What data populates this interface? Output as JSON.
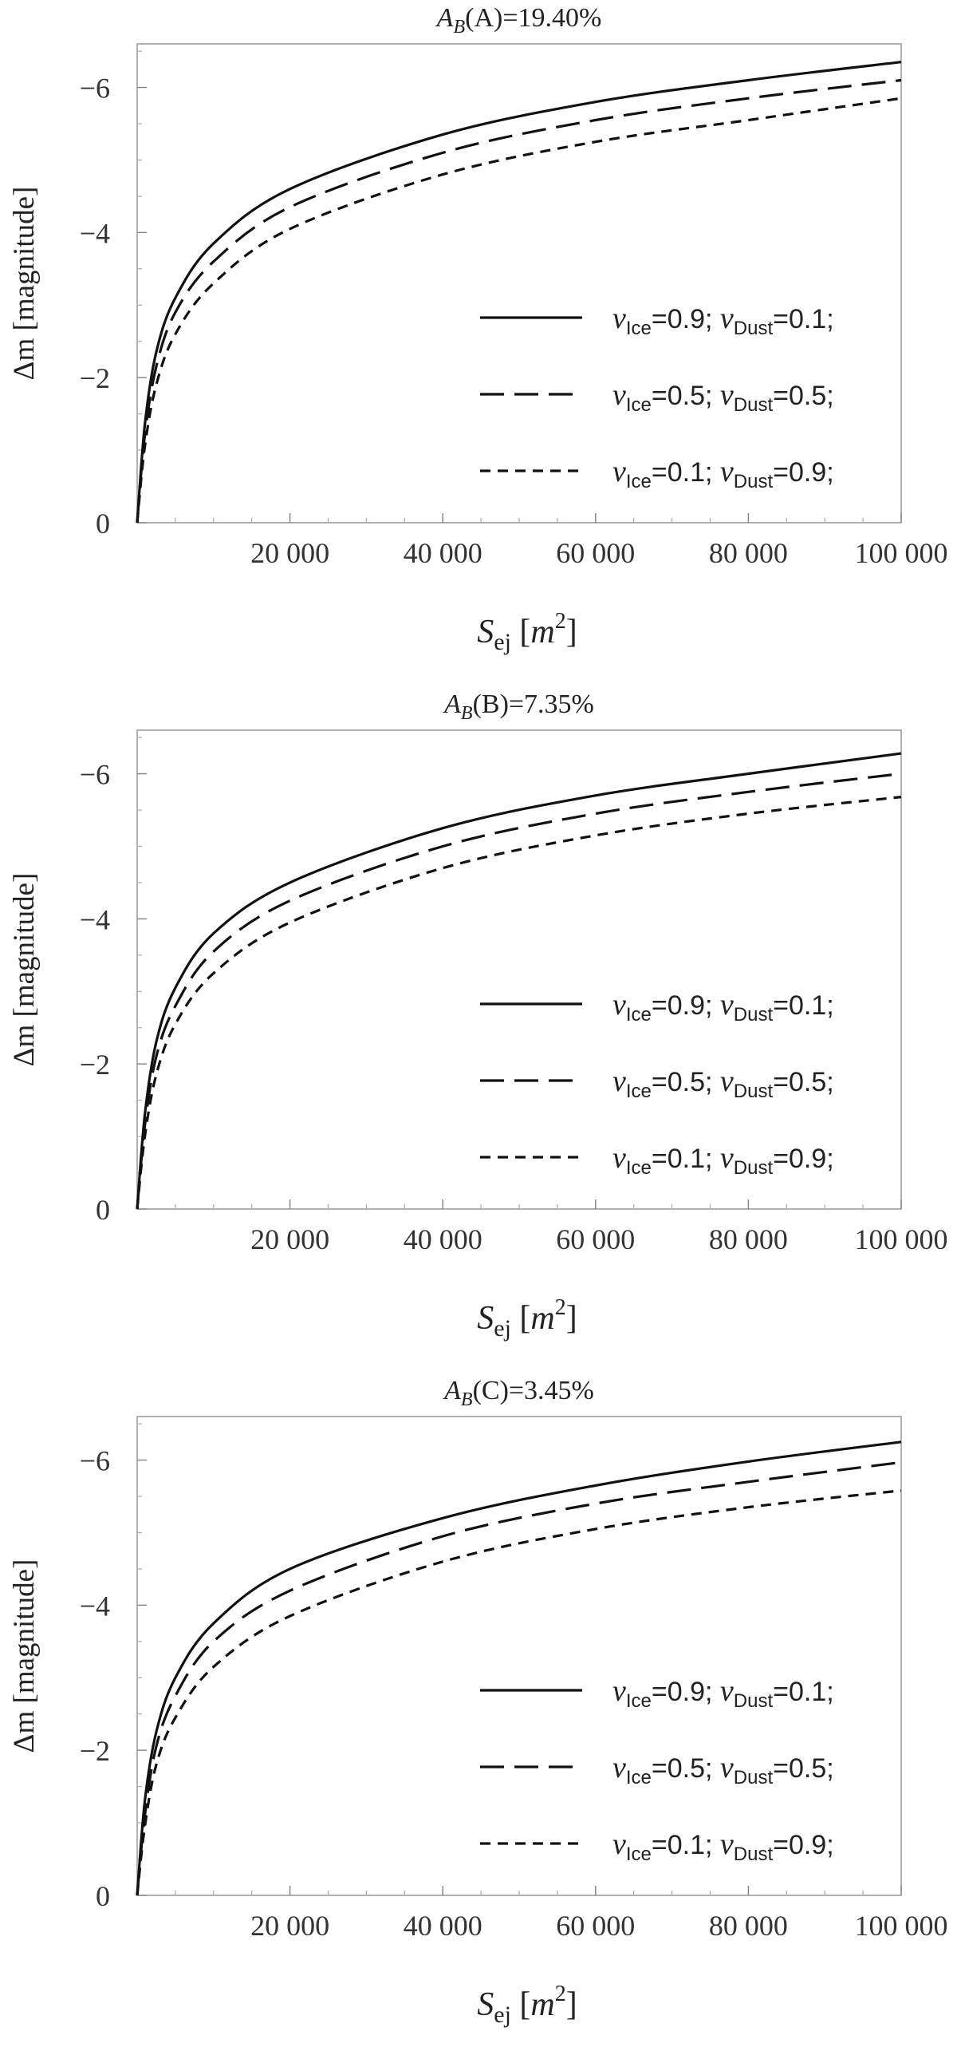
{
  "chart_data": [
    {
      "type": "line",
      "title": {
        "sym": "A",
        "sub": "B",
        "rest": "(A)=19.40%"
      },
      "xlabel": {
        "sym": "S",
        "sub": "ej",
        "open": "[",
        "unit": "m",
        "sup": "2",
        "close": "]"
      },
      "ylabel": "Δm [magnitude]",
      "xlim": [
        0,
        100000
      ],
      "ylim": [
        0,
        -6.6
      ],
      "y_reversed": true,
      "xticks": [
        20000,
        40000,
        60000,
        80000,
        100000
      ],
      "xtick_labels": [
        "20 000",
        "40 000",
        "60 000",
        "80 000",
        "100 000"
      ],
      "yticks": [
        0,
        -2,
        -4,
        -6
      ],
      "ytick_labels": [
        "0",
        "−2",
        "−4",
        "−6"
      ],
      "legend_position": "right",
      "series": [
        {
          "name": {
            "v1": "v",
            "s1": "Ice",
            "e1": "=0.9; ",
            "v2": "v",
            "s2": "Dust",
            "e2": "=0.1;"
          },
          "style": "solid",
          "x": [
            0,
            1000,
            2500,
            5000,
            10000,
            20000,
            40000,
            60000,
            80000,
            100000
          ],
          "y": [
            0,
            -1.35,
            -2.35,
            -3.1,
            -3.85,
            -4.6,
            -5.35,
            -5.8,
            -6.1,
            -6.35
          ]
        },
        {
          "name": {
            "v1": "v",
            "s1": "Ice",
            "e1": "=0.5; ",
            "v2": "v",
            "s2": "Dust",
            "e2": "=0.5;"
          },
          "style": "long-dash",
          "x": [
            0,
            1000,
            2500,
            5000,
            10000,
            20000,
            40000,
            60000,
            80000,
            100000
          ],
          "y": [
            0,
            -1.2,
            -2.15,
            -2.9,
            -3.6,
            -4.35,
            -5.1,
            -5.55,
            -5.85,
            -6.1
          ]
        },
        {
          "name": {
            "v1": "v",
            "s1": "Ice",
            "e1": "=0.1; ",
            "v2": "v",
            "s2": "Dust",
            "e2": "=0.9;"
          },
          "style": "short-dash",
          "x": [
            0,
            1000,
            2500,
            5000,
            10000,
            20000,
            40000,
            60000,
            80000,
            100000
          ],
          "y": [
            0,
            -1.05,
            -1.9,
            -2.6,
            -3.3,
            -4.05,
            -4.8,
            -5.25,
            -5.55,
            -5.85
          ]
        }
      ]
    },
    {
      "type": "line",
      "title": {
        "sym": "A",
        "sub": "B",
        "rest": "(B)=7.35%"
      },
      "xlabel": {
        "sym": "S",
        "sub": "ej",
        "open": "[",
        "unit": "m",
        "sup": "2",
        "close": "]"
      },
      "ylabel": "Δm [magnitude]",
      "xlim": [
        0,
        100000
      ],
      "ylim": [
        0,
        -6.6
      ],
      "y_reversed": true,
      "xticks": [
        20000,
        40000,
        60000,
        80000,
        100000
      ],
      "xtick_labels": [
        "20 000",
        "40 000",
        "60 000",
        "80 000",
        "100 000"
      ],
      "yticks": [
        0,
        -2,
        -4,
        -6
      ],
      "ytick_labels": [
        "0",
        "−2",
        "−4",
        "−6"
      ],
      "legend_position": "right",
      "series": [
        {
          "name": {
            "v1": "v",
            "s1": "Ice",
            "e1": "=0.9; ",
            "v2": "v",
            "s2": "Dust",
            "e2": "=0.1;"
          },
          "style": "solid",
          "x": [
            0,
            1000,
            2500,
            5000,
            10000,
            20000,
            40000,
            60000,
            80000,
            100000
          ],
          "y": [
            0,
            -1.3,
            -2.3,
            -3.05,
            -3.8,
            -4.5,
            -5.25,
            -5.7,
            -6.0,
            -6.28
          ]
        },
        {
          "name": {
            "v1": "v",
            "s1": "Ice",
            "e1": "=0.5; ",
            "v2": "v",
            "s2": "Dust",
            "e2": "=0.5;"
          },
          "style": "long-dash",
          "x": [
            0,
            1000,
            2500,
            5000,
            10000,
            20000,
            40000,
            60000,
            80000,
            100000
          ],
          "y": [
            0,
            -1.15,
            -2.1,
            -2.8,
            -3.55,
            -4.25,
            -5.0,
            -5.45,
            -5.75,
            -6.0
          ]
        },
        {
          "name": {
            "v1": "v",
            "s1": "Ice",
            "e1": "=0.1; ",
            "v2": "v",
            "s2": "Dust",
            "e2": "=0.9;"
          },
          "style": "short-dash",
          "x": [
            0,
            1000,
            2500,
            5000,
            10000,
            20000,
            40000,
            60000,
            80000,
            100000
          ],
          "y": [
            0,
            -1.0,
            -1.85,
            -2.55,
            -3.25,
            -3.95,
            -4.7,
            -5.15,
            -5.45,
            -5.68
          ]
        }
      ]
    },
    {
      "type": "line",
      "title": {
        "sym": "A",
        "sub": "B",
        "rest": "(C)=3.45%"
      },
      "xlabel": {
        "sym": "S",
        "sub": "ej",
        "open": "[",
        "unit": "m",
        "sup": "2",
        "close": "]"
      },
      "ylabel": "Δm [magnitude]",
      "xlim": [
        0,
        100000
      ],
      "ylim": [
        0,
        -6.6
      ],
      "y_reversed": true,
      "xticks": [
        20000,
        40000,
        60000,
        80000,
        100000
      ],
      "xtick_labels": [
        "20 000",
        "40 000",
        "60 000",
        "80 000",
        "100 000"
      ],
      "yticks": [
        0,
        -2,
        -4,
        -6
      ],
      "ytick_labels": [
        "0",
        "−2",
        "−4",
        "−6"
      ],
      "legend_position": "right",
      "series": [
        {
          "name": {
            "v1": "v",
            "s1": "Ice",
            "e1": "=0.9; ",
            "v2": "v",
            "s2": "Dust",
            "e2": "=0.1;"
          },
          "style": "solid",
          "x": [
            0,
            1000,
            2500,
            5000,
            10000,
            20000,
            40000,
            60000,
            80000,
            100000
          ],
          "y": [
            0,
            -1.3,
            -2.25,
            -3.0,
            -3.75,
            -4.5,
            -5.2,
            -5.65,
            -5.98,
            -6.25
          ]
        },
        {
          "name": {
            "v1": "v",
            "s1": "Ice",
            "e1": "=0.5; ",
            "v2": "v",
            "s2": "Dust",
            "e2": "=0.5;"
          },
          "style": "long-dash",
          "x": [
            0,
            1000,
            2500,
            5000,
            10000,
            20000,
            40000,
            60000,
            80000,
            100000
          ],
          "y": [
            0,
            -1.1,
            -2.05,
            -2.75,
            -3.5,
            -4.2,
            -4.95,
            -5.4,
            -5.7,
            -5.97
          ]
        },
        {
          "name": {
            "v1": "v",
            "s1": "Ice",
            "e1": "=0.1; ",
            "v2": "v",
            "s2": "Dust",
            "e2": "=0.9;"
          },
          "style": "short-dash",
          "x": [
            0,
            1000,
            2500,
            5000,
            10000,
            20000,
            40000,
            60000,
            80000,
            100000
          ],
          "y": [
            0,
            -0.95,
            -1.8,
            -2.45,
            -3.15,
            -3.85,
            -4.6,
            -5.05,
            -5.35,
            -5.58
          ]
        }
      ]
    }
  ]
}
